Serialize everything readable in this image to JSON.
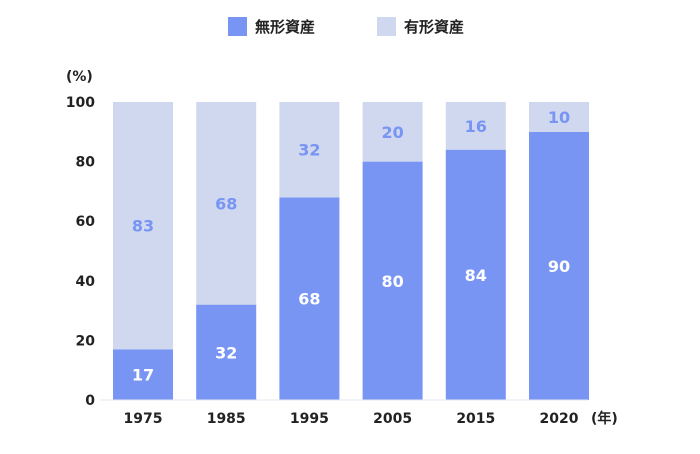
{
  "chart_data": {
    "type": "bar",
    "stacked": true,
    "categories": [
      "1975",
      "1985",
      "1995",
      "2005",
      "2015",
      "2020"
    ],
    "series": [
      {
        "name": "無形資産",
        "values": [
          17,
          32,
          68,
          80,
          84,
          90
        ],
        "color": "#7895f3",
        "label_color": "#ffffff"
      },
      {
        "name": "有形資産",
        "values": [
          83,
          68,
          32,
          20,
          16,
          10
        ],
        "color": "#cfd8ef",
        "label_color": "#7895f3"
      }
    ],
    "ylim": [
      0,
      100
    ],
    "yticks": [
      "0",
      "20",
      "40",
      "60",
      "80",
      "100"
    ],
    "ylabel": "(%)",
    "xlabel": "(年)",
    "legend": "top-center",
    "grid": false
  }
}
